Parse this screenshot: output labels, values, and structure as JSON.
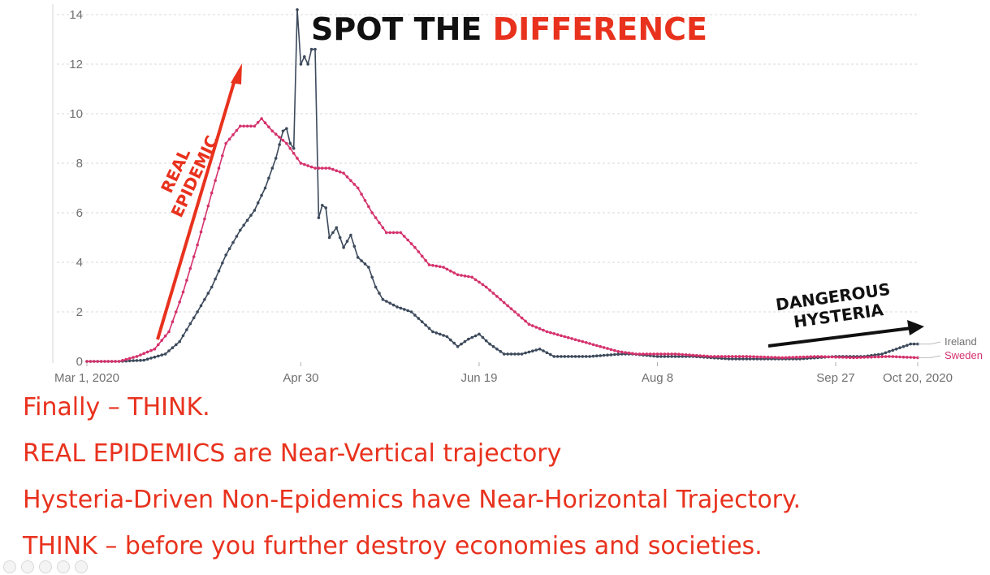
{
  "headline": {
    "part1": "SPOT THE ",
    "part2": "DIFFERENCE",
    "color1": "#111111",
    "color2": "#e8321e"
  },
  "annotations": {
    "real_epidemic_line1": "REAL",
    "real_epidemic_line2": "EPIDEMIC",
    "real_epidemic_color": "#e8321e",
    "hysteria_line1": "DANGEROUS",
    "hysteria_line2": "HYSTERIA",
    "hysteria_color": "#111111"
  },
  "footer": {
    "line1": "Finally – THINK.",
    "line2": "REAL EPIDEMICS are Near-Vertical trajectory",
    "line3": "Hysteria-Driven Non-Epidemics have Near-Horizontal Trajectory.",
    "line4": "THINK – before you further destroy economies and societies.",
    "color": "#e8321e"
  },
  "player_controls": [
    "control-icon-1",
    "control-icon-2",
    "control-icon-3",
    "control-icon-4",
    "control-icon-5"
  ],
  "chart_data": {
    "type": "line",
    "ylim": [
      0,
      14
    ],
    "yticks": [
      "0",
      "2",
      "4",
      "6",
      "8",
      "10",
      "12",
      "14"
    ],
    "x_range": [
      "2020-03-01",
      "2020-10-20"
    ],
    "xticks": [
      {
        "date": "2020-03-01",
        "label": "Mar 1, 2020"
      },
      {
        "date": "2020-04-30",
        "label": "Apr 30"
      },
      {
        "date": "2020-06-19",
        "label": "Jun 19"
      },
      {
        "date": "2020-08-08",
        "label": "Aug 8"
      },
      {
        "date": "2020-09-27",
        "label": "Sep 27"
      },
      {
        "date": "2020-10-20",
        "label": "Oct 20, 2020"
      }
    ],
    "grid": "horizontal dashed",
    "series": [
      {
        "name": "Ireland",
        "color": "#3d4a5c",
        "points": [
          [
            "2020-03-01",
            0
          ],
          [
            "2020-03-10",
            0
          ],
          [
            "2020-03-17",
            0.05
          ],
          [
            "2020-03-23",
            0.3
          ],
          [
            "2020-03-27",
            0.8
          ],
          [
            "2020-04-01",
            2.0
          ],
          [
            "2020-04-05",
            3.0
          ],
          [
            "2020-04-09",
            4.3
          ],
          [
            "2020-04-13",
            5.3
          ],
          [
            "2020-04-17",
            6.1
          ],
          [
            "2020-04-20",
            7.0
          ],
          [
            "2020-04-23",
            8.2
          ],
          [
            "2020-04-25",
            9.3
          ],
          [
            "2020-04-26",
            9.4
          ],
          [
            "2020-04-27",
            8.8
          ],
          [
            "2020-04-28",
            8.6
          ],
          [
            "2020-04-29",
            14.2
          ],
          [
            "2020-04-30",
            12.0
          ],
          [
            "2020-05-01",
            12.3
          ],
          [
            "2020-05-02",
            12.0
          ],
          [
            "2020-05-03",
            12.6
          ],
          [
            "2020-05-04",
            12.6
          ],
          [
            "2020-05-05",
            5.8
          ],
          [
            "2020-05-06",
            6.3
          ],
          [
            "2020-05-07",
            6.2
          ],
          [
            "2020-05-08",
            5.0
          ],
          [
            "2020-05-10",
            5.4
          ],
          [
            "2020-05-12",
            4.6
          ],
          [
            "2020-05-14",
            5.1
          ],
          [
            "2020-05-16",
            4.2
          ],
          [
            "2020-05-19",
            3.8
          ],
          [
            "2020-05-21",
            3.0
          ],
          [
            "2020-05-23",
            2.5
          ],
          [
            "2020-05-27",
            2.2
          ],
          [
            "2020-05-31",
            2.0
          ],
          [
            "2020-06-03",
            1.6
          ],
          [
            "2020-06-06",
            1.2
          ],
          [
            "2020-06-10",
            1.0
          ],
          [
            "2020-06-13",
            0.6
          ],
          [
            "2020-06-16",
            0.9
          ],
          [
            "2020-06-19",
            1.1
          ],
          [
            "2020-06-22",
            0.7
          ],
          [
            "2020-06-26",
            0.3
          ],
          [
            "2020-07-01",
            0.3
          ],
          [
            "2020-07-06",
            0.5
          ],
          [
            "2020-07-10",
            0.2
          ],
          [
            "2020-07-20",
            0.2
          ],
          [
            "2020-07-29",
            0.3
          ],
          [
            "2020-08-01",
            0.3
          ],
          [
            "2020-08-08",
            0.2
          ],
          [
            "2020-08-18",
            0.2
          ],
          [
            "2020-08-28",
            0.1
          ],
          [
            "2020-09-07",
            0.1
          ],
          [
            "2020-09-17",
            0.1
          ],
          [
            "2020-09-27",
            0.2
          ],
          [
            "2020-10-05",
            0.2
          ],
          [
            "2020-10-10",
            0.3
          ],
          [
            "2020-10-14",
            0.5
          ],
          [
            "2020-10-18",
            0.7
          ],
          [
            "2020-10-20",
            0.7
          ]
        ]
      },
      {
        "name": "Sweden",
        "color": "#d4326c",
        "points": [
          [
            "2020-03-01",
            0
          ],
          [
            "2020-03-10",
            0
          ],
          [
            "2020-03-15",
            0.2
          ],
          [
            "2020-03-20",
            0.5
          ],
          [
            "2020-03-24",
            1.2
          ],
          [
            "2020-03-28",
            2.8
          ],
          [
            "2020-04-01",
            4.7
          ],
          [
            "2020-04-05",
            6.8
          ],
          [
            "2020-04-09",
            8.8
          ],
          [
            "2020-04-13",
            9.5
          ],
          [
            "2020-04-17",
            9.5
          ],
          [
            "2020-04-19",
            9.8
          ],
          [
            "2020-04-22",
            9.3
          ],
          [
            "2020-04-26",
            8.8
          ],
          [
            "2020-04-30",
            8.0
          ],
          [
            "2020-05-04",
            7.8
          ],
          [
            "2020-05-08",
            7.8
          ],
          [
            "2020-05-12",
            7.6
          ],
          [
            "2020-05-16",
            7.0
          ],
          [
            "2020-05-20",
            6.0
          ],
          [
            "2020-05-24",
            5.2
          ],
          [
            "2020-05-28",
            5.2
          ],
          [
            "2020-06-01",
            4.6
          ],
          [
            "2020-06-05",
            3.9
          ],
          [
            "2020-06-09",
            3.8
          ],
          [
            "2020-06-13",
            3.5
          ],
          [
            "2020-06-17",
            3.4
          ],
          [
            "2020-06-21",
            3.0
          ],
          [
            "2020-06-25",
            2.5
          ],
          [
            "2020-06-29",
            2.0
          ],
          [
            "2020-07-03",
            1.5
          ],
          [
            "2020-07-08",
            1.2
          ],
          [
            "2020-07-13",
            1.0
          ],
          [
            "2020-07-18",
            0.8
          ],
          [
            "2020-07-23",
            0.6
          ],
          [
            "2020-07-28",
            0.4
          ],
          [
            "2020-08-02",
            0.3
          ],
          [
            "2020-08-08",
            0.3
          ],
          [
            "2020-08-13",
            0.3
          ],
          [
            "2020-08-23",
            0.2
          ],
          [
            "2020-09-02",
            0.2
          ],
          [
            "2020-09-12",
            0.15
          ],
          [
            "2020-09-22",
            0.2
          ],
          [
            "2020-10-02",
            0.15
          ],
          [
            "2020-10-12",
            0.2
          ],
          [
            "2020-10-20",
            0.15
          ]
        ]
      }
    ]
  }
}
